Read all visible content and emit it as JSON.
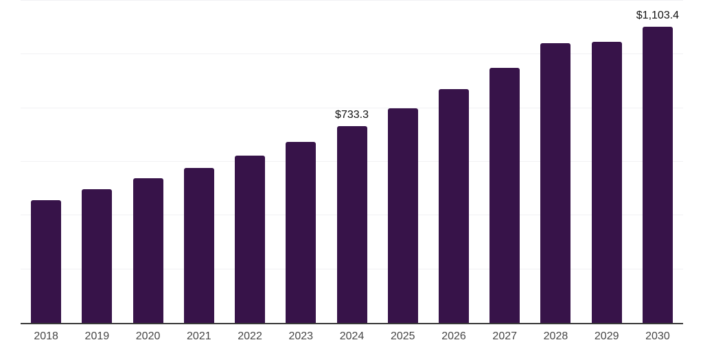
{
  "chart_data": {
    "type": "bar",
    "title": "",
    "xlabel": "",
    "ylabel": "",
    "categories": [
      "2018",
      "2019",
      "2020",
      "2021",
      "2022",
      "2023",
      "2024",
      "2025",
      "2026",
      "2027",
      "2028",
      "2029",
      "2030"
    ],
    "values": [
      458,
      497,
      539,
      578,
      624,
      675,
      733.3,
      800,
      870,
      949,
      1043,
      1048,
      1103.4
    ],
    "data_labels": {
      "2024": "$733.3",
      "2030": "$1,103.4"
    },
    "ylim": [
      0,
      1200
    ],
    "grid_step": 200,
    "grid": true,
    "legend": false,
    "colors": {
      "bar": "#371349",
      "axis_line": "#383838",
      "gridline": "#f1f1f4",
      "value_label": "#111111",
      "tick_label": "#454545",
      "background": "#ffffff"
    }
  }
}
